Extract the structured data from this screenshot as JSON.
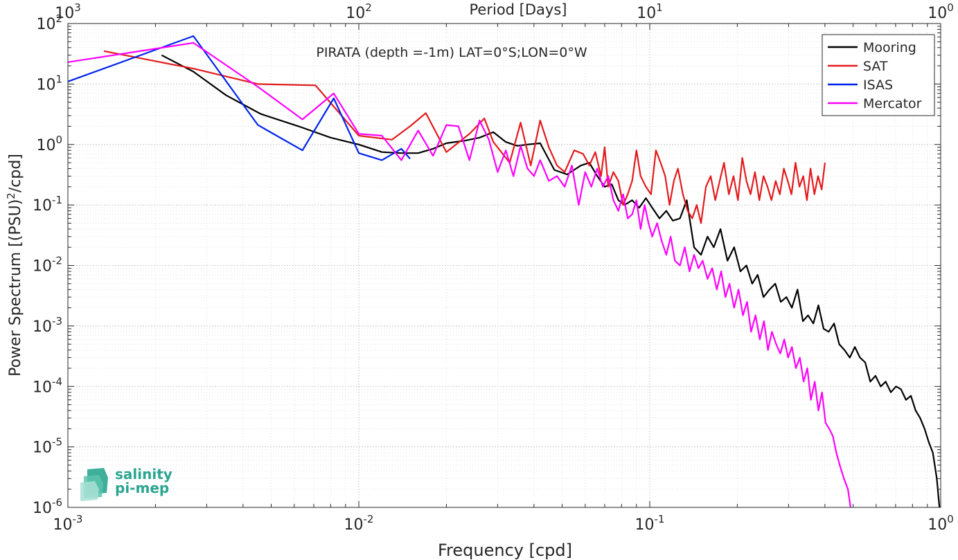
{
  "chart_data": {
    "type": "line",
    "title": "PIRATA (depth =-1m) LAT=0°S;LON=0°W",
    "xlabel": "Frequency [cpd]",
    "ylabel_main": "Power Spectrum [(PSU)",
    "ylabel_sup": "2",
    "ylabel_tail": "/cpd]",
    "top_xlabel": "Period [Days]",
    "x_scale": "log",
    "y_scale": "log",
    "xlim": [
      0.001,
      1
    ],
    "ylim": [
      1e-06,
      100
    ],
    "grid": true,
    "legend_position": "top-right",
    "x_ticks": [
      {
        "value": 0.001,
        "base": "10",
        "exp": "-3"
      },
      {
        "value": 0.01,
        "base": "10",
        "exp": "-2"
      },
      {
        "value": 0.1,
        "base": "10",
        "exp": "-1"
      },
      {
        "value": 1,
        "base": "10",
        "exp": "0"
      }
    ],
    "top_ticks": [
      {
        "value": 0.001,
        "base": "10",
        "exp": "3"
      },
      {
        "value": 0.01,
        "base": "10",
        "exp": "2"
      },
      {
        "value": 0.1,
        "base": "10",
        "exp": "1"
      },
      {
        "value": 1,
        "base": "10",
        "exp": "0"
      }
    ],
    "y_ticks": [
      {
        "value": 100,
        "base": "10",
        "exp": "2"
      },
      {
        "value": 10,
        "base": "10",
        "exp": "1"
      },
      {
        "value": 1,
        "base": "10",
        "exp": "0"
      },
      {
        "value": 0.1,
        "base": "10",
        "exp": "-1"
      },
      {
        "value": 0.01,
        "base": "10",
        "exp": "-2"
      },
      {
        "value": 0.001,
        "base": "10",
        "exp": "-3"
      },
      {
        "value": 0.0001,
        "base": "10",
        "exp": "-4"
      },
      {
        "value": 1e-05,
        "base": "10",
        "exp": "-5"
      },
      {
        "value": 1e-06,
        "base": "10",
        "exp": "-6"
      }
    ],
    "series": [
      {
        "name": "Mooring",
        "color": "#000000",
        "x": [
          0.0021,
          0.0027,
          0.0035,
          0.0046,
          0.0062,
          0.008,
          0.01,
          0.012,
          0.014,
          0.016,
          0.018,
          0.02,
          0.023,
          0.026,
          0.029,
          0.032,
          0.035,
          0.038,
          0.042,
          0.047,
          0.052,
          0.058,
          0.062,
          0.066,
          0.07,
          0.074,
          0.078,
          0.082,
          0.087,
          0.092,
          0.097,
          0.102,
          0.108,
          0.114,
          0.12,
          0.127,
          0.134,
          0.142,
          0.15,
          0.158,
          0.166,
          0.175,
          0.185,
          0.195,
          0.205,
          0.215,
          0.225,
          0.235,
          0.246,
          0.258,
          0.27,
          0.282,
          0.295,
          0.308,
          0.322,
          0.336,
          0.35,
          0.365,
          0.38,
          0.396,
          0.412,
          0.43,
          0.448,
          0.467,
          0.487,
          0.507,
          0.528,
          0.55,
          0.573,
          0.597,
          0.622,
          0.647,
          0.674,
          0.702,
          0.73,
          0.76,
          0.79,
          0.82,
          0.85,
          0.88,
          0.91,
          0.94,
          0.97,
          0.99
        ],
        "y": [
          30,
          16,
          6.5,
          3.2,
          2.0,
          1.3,
          1.0,
          0.75,
          0.72,
          0.72,
          0.85,
          1.05,
          1.15,
          1.3,
          1.6,
          1.1,
          0.95,
          1.0,
          1.05,
          0.38,
          0.32,
          0.45,
          0.5,
          0.3,
          0.2,
          0.22,
          0.12,
          0.1,
          0.12,
          0.09,
          0.13,
          0.09,
          0.06,
          0.08,
          0.055,
          0.06,
          0.12,
          0.02,
          0.015,
          0.03,
          0.02,
          0.04,
          0.012,
          0.02,
          0.008,
          0.01,
          0.005,
          0.007,
          0.003,
          0.004,
          0.005,
          0.0025,
          0.003,
          0.002,
          0.004,
          0.0012,
          0.0015,
          0.0011,
          0.0022,
          0.0009,
          0.0008,
          0.0011,
          0.0005,
          0.0004,
          0.0003,
          0.00045,
          0.0003,
          0.00025,
          0.00012,
          0.00015,
          0.0001,
          0.00012,
          8e-05,
          0.0001,
          9e-05,
          6e-05,
          7e-05,
          4e-05,
          3e-05,
          2e-05,
          1.2e-05,
          8e-06,
          3e-06,
          1e-06
        ]
      },
      {
        "name": "SAT",
        "color": "#e31a1c",
        "x": [
          0.00133,
          0.0027,
          0.0045,
          0.0071,
          0.01,
          0.013,
          0.015,
          0.017,
          0.02,
          0.024,
          0.027,
          0.029,
          0.033,
          0.036,
          0.039,
          0.042,
          0.045,
          0.048,
          0.051,
          0.055,
          0.059,
          0.062,
          0.065,
          0.068,
          0.07,
          0.072,
          0.075,
          0.078,
          0.081,
          0.084,
          0.087,
          0.09,
          0.093,
          0.097,
          0.101,
          0.105,
          0.109,
          0.113,
          0.117,
          0.121,
          0.125,
          0.13,
          0.135,
          0.14,
          0.145,
          0.15,
          0.156,
          0.162,
          0.168,
          0.174,
          0.18,
          0.187,
          0.194,
          0.201,
          0.208,
          0.215,
          0.222,
          0.23,
          0.238,
          0.246,
          0.254,
          0.262,
          0.271,
          0.28,
          0.289,
          0.298,
          0.307,
          0.317,
          0.327,
          0.337,
          0.347,
          0.357,
          0.368,
          0.379,
          0.39,
          0.4
        ],
        "y": [
          35,
          18,
          10,
          9.5,
          1.4,
          1.2,
          2.0,
          3.3,
          0.75,
          1.5,
          2.7,
          1.1,
          0.5,
          2.3,
          0.45,
          2.5,
          0.9,
          0.45,
          0.35,
          0.8,
          0.7,
          0.45,
          0.75,
          0.3,
          0.9,
          0.2,
          0.35,
          0.25,
          0.1,
          0.15,
          0.25,
          0.8,
          0.3,
          0.2,
          0.15,
          0.8,
          0.5,
          0.3,
          0.1,
          0.25,
          0.4,
          0.15,
          0.08,
          0.06,
          0.1,
          0.05,
          0.2,
          0.3,
          0.12,
          0.25,
          0.5,
          0.15,
          0.3,
          0.12,
          0.6,
          0.25,
          0.15,
          0.35,
          0.12,
          0.3,
          0.2,
          0.12,
          0.25,
          0.15,
          0.4,
          0.25,
          0.15,
          0.5,
          0.2,
          0.3,
          0.12,
          0.4,
          0.15,
          0.3,
          0.18,
          0.5
        ]
      },
      {
        "name": "ISAS",
        "color": "#0022ee",
        "x": [
          0.001,
          0.0027,
          0.0045,
          0.0064,
          0.0082,
          0.01,
          0.012,
          0.014,
          0.015
        ],
        "y": [
          11,
          62,
          2.1,
          0.8,
          5.8,
          0.72,
          0.55,
          0.85,
          0.58
        ]
      },
      {
        "name": "Mercator",
        "color": "#ff00ff",
        "x": [
          0.001,
          0.0027,
          0.0045,
          0.0064,
          0.0082,
          0.01,
          0.012,
          0.014,
          0.016,
          0.018,
          0.02,
          0.022,
          0.024,
          0.026,
          0.028,
          0.03,
          0.032,
          0.034,
          0.036,
          0.038,
          0.04,
          0.042,
          0.045,
          0.048,
          0.051,
          0.054,
          0.057,
          0.06,
          0.063,
          0.066,
          0.069,
          0.072,
          0.075,
          0.078,
          0.081,
          0.084,
          0.087,
          0.09,
          0.093,
          0.096,
          0.099,
          0.102,
          0.106,
          0.11,
          0.114,
          0.118,
          0.122,
          0.127,
          0.132,
          0.137,
          0.142,
          0.147,
          0.152,
          0.158,
          0.164,
          0.17,
          0.176,
          0.182,
          0.188,
          0.195,
          0.202,
          0.209,
          0.216,
          0.223,
          0.231,
          0.239,
          0.247,
          0.255,
          0.263,
          0.272,
          0.281,
          0.29,
          0.299,
          0.308,
          0.318,
          0.328,
          0.338,
          0.348,
          0.358,
          0.369,
          0.38,
          0.391,
          0.402,
          0.414,
          0.426,
          0.438,
          0.45,
          0.465,
          0.48,
          0.49
        ],
        "y": [
          23,
          48,
          9.0,
          2.6,
          7.0,
          1.5,
          1.4,
          0.55,
          1.7,
          0.65,
          2.1,
          2.0,
          0.55,
          2.5,
          1.2,
          0.35,
          0.8,
          0.3,
          0.95,
          0.4,
          0.3,
          0.55,
          0.25,
          0.3,
          0.2,
          0.45,
          0.1,
          0.35,
          0.2,
          0.4,
          0.2,
          0.3,
          0.12,
          0.08,
          0.15,
          0.06,
          0.07,
          0.12,
          0.04,
          0.1,
          0.05,
          0.03,
          0.05,
          0.025,
          0.015,
          0.03,
          0.012,
          0.01,
          0.02,
          0.008,
          0.015,
          0.009,
          0.012,
          0.006,
          0.009,
          0.004,
          0.008,
          0.003,
          0.005,
          0.002,
          0.004,
          0.0015,
          0.0025,
          0.0008,
          0.0015,
          0.0006,
          0.0012,
          0.0004,
          0.0008,
          0.0005,
          0.00035,
          0.0006,
          0.0003,
          0.00045,
          0.0002,
          0.0003,
          0.00012,
          0.0002,
          6e-05,
          0.00012,
          4e-05,
          8e-05,
          2.5e-05,
          2e-05,
          1.5e-05,
          8e-06,
          5e-06,
          3e-06,
          2e-06,
          1e-06
        ]
      }
    ]
  },
  "logo": {
    "line1": "salinity",
    "line2": "pi-mep",
    "color": "#2aa58f"
  }
}
